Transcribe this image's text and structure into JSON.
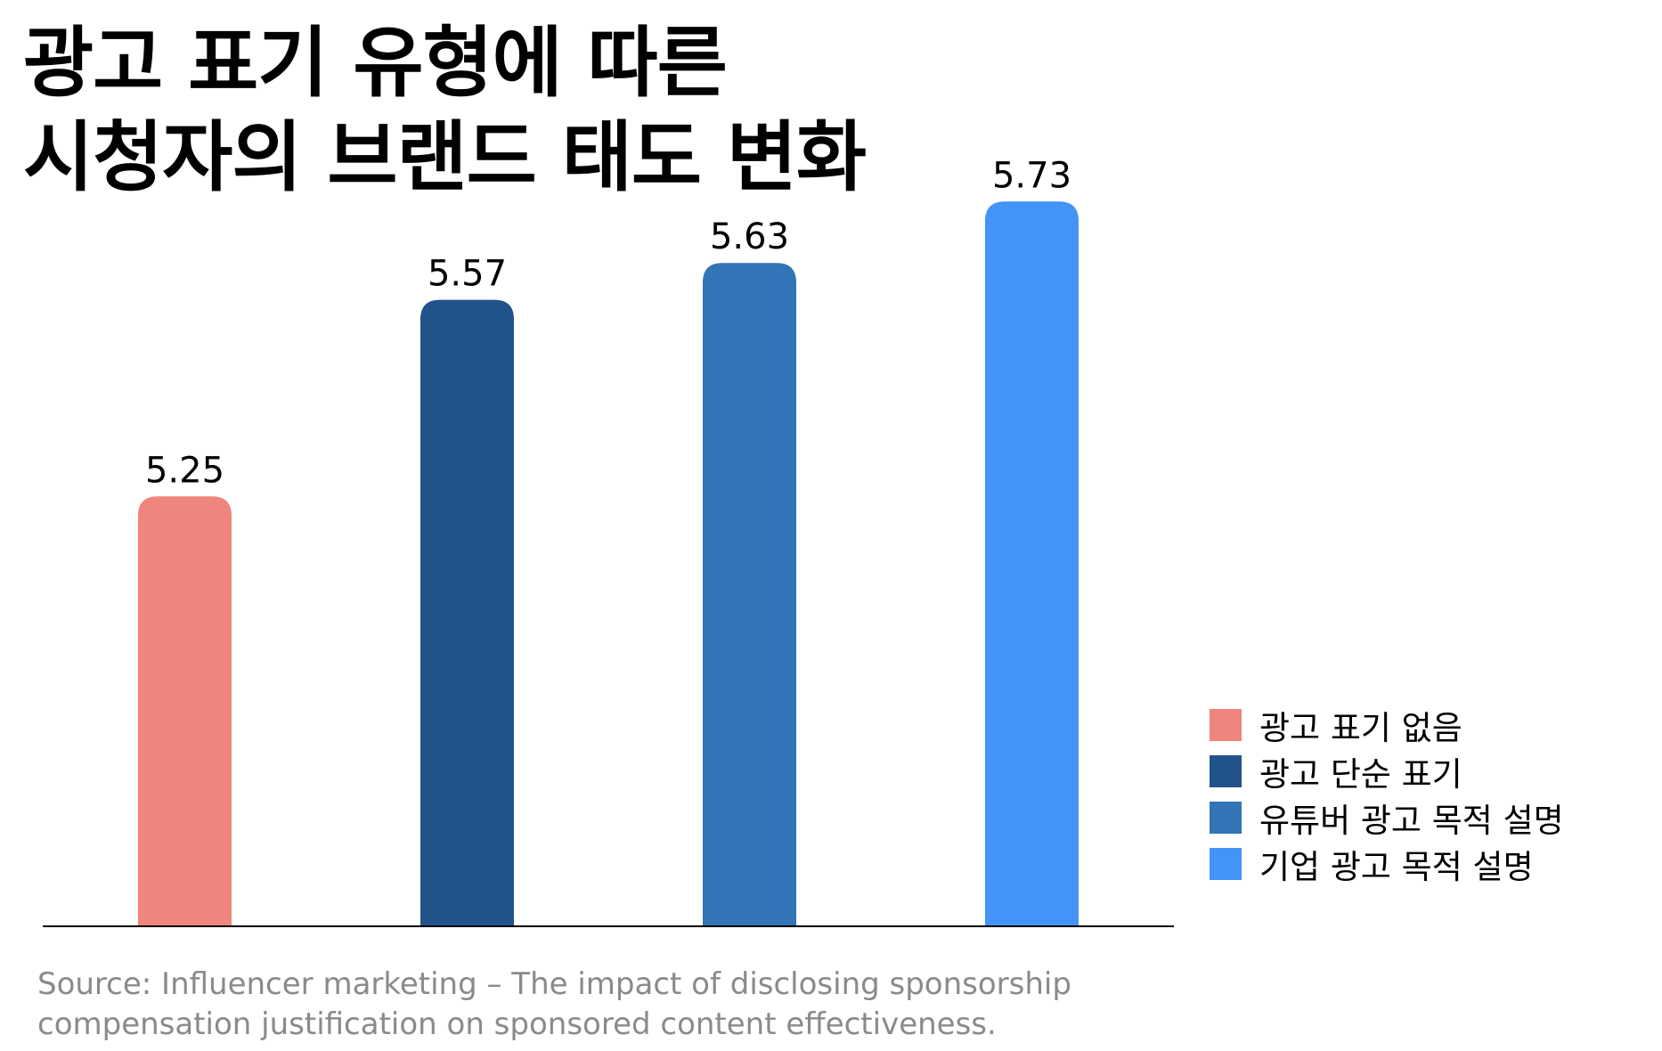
{
  "chart_data": {
    "type": "bar",
    "title": [
      "광고 표기 유형에 따른",
      "시청자의 브랜드 태도 변화"
    ],
    "categories": [
      "광고 표기 없음",
      "광고 단순 표기",
      "유튜버 광고 목적 설명",
      "기업 광고 목적 설명"
    ],
    "values": [
      5.25,
      5.57,
      5.63,
      5.73
    ],
    "value_labels": [
      "5.25",
      "5.57",
      "5.63",
      "5.73"
    ],
    "colors": [
      "#ef857d",
      "#22528a",
      "#3274b5",
      "#4394f6"
    ],
    "legend": {
      "placement": "right",
      "entries": [
        "광고 표기 없음",
        "광고 단순 표기",
        "유튜버 광고 목적 설명",
        "기업 광고 목적 설명"
      ]
    },
    "grid": false,
    "ylim": [
      4.55,
      5.8
    ]
  },
  "source": {
    "line1": "Source: Influencer marketing – The impact of disclosing sponsorship",
    "line2": "compensation justification on sponsored content effectiveness."
  }
}
